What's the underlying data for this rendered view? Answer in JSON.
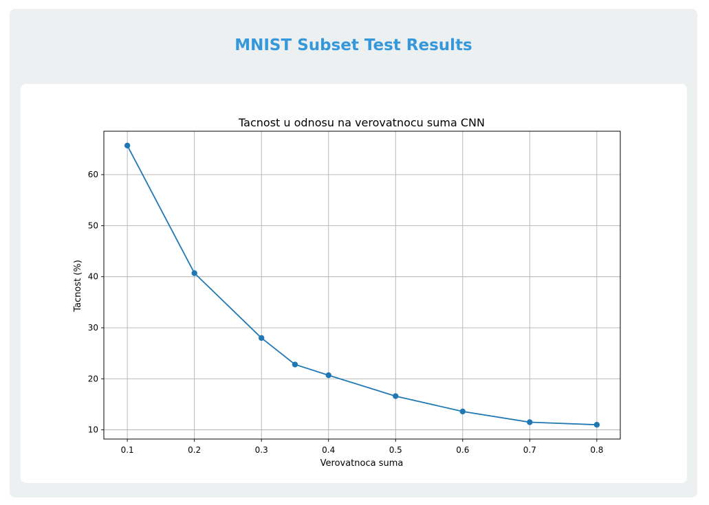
{
  "page": {
    "title": "MNIST Subset Test Results"
  },
  "colors": {
    "title": "#3498db",
    "outer_bg": "#ecf0f1",
    "card_bg": "#ffffff",
    "series": "#1f77b4",
    "grid": "#b0b0b0"
  },
  "chart_data": {
    "type": "line",
    "title": "Tacnost u odnosu na verovatnocu suma CNN",
    "xlabel": "Verovatnoca suma",
    "ylabel": "Tacnost (%)",
    "x": [
      0.1,
      0.2,
      0.3,
      0.35,
      0.4,
      0.5,
      0.6,
      0.7,
      0.8
    ],
    "series": [
      {
        "values": [
          65.7,
          40.7,
          28.0,
          22.8,
          20.7,
          16.6,
          13.6,
          11.5,
          11.0
        ],
        "marker": "circle"
      }
    ],
    "xticks": [
      "0.1",
      "0.2",
      "0.3",
      "0.4",
      "0.5",
      "0.6",
      "0.7",
      "0.8"
    ],
    "yticks": [
      "10",
      "20",
      "30",
      "40",
      "50",
      "60"
    ],
    "xlim": [
      0.065,
      0.835
    ],
    "ylim": [
      8.2,
      68.5
    ],
    "grid": true
  }
}
